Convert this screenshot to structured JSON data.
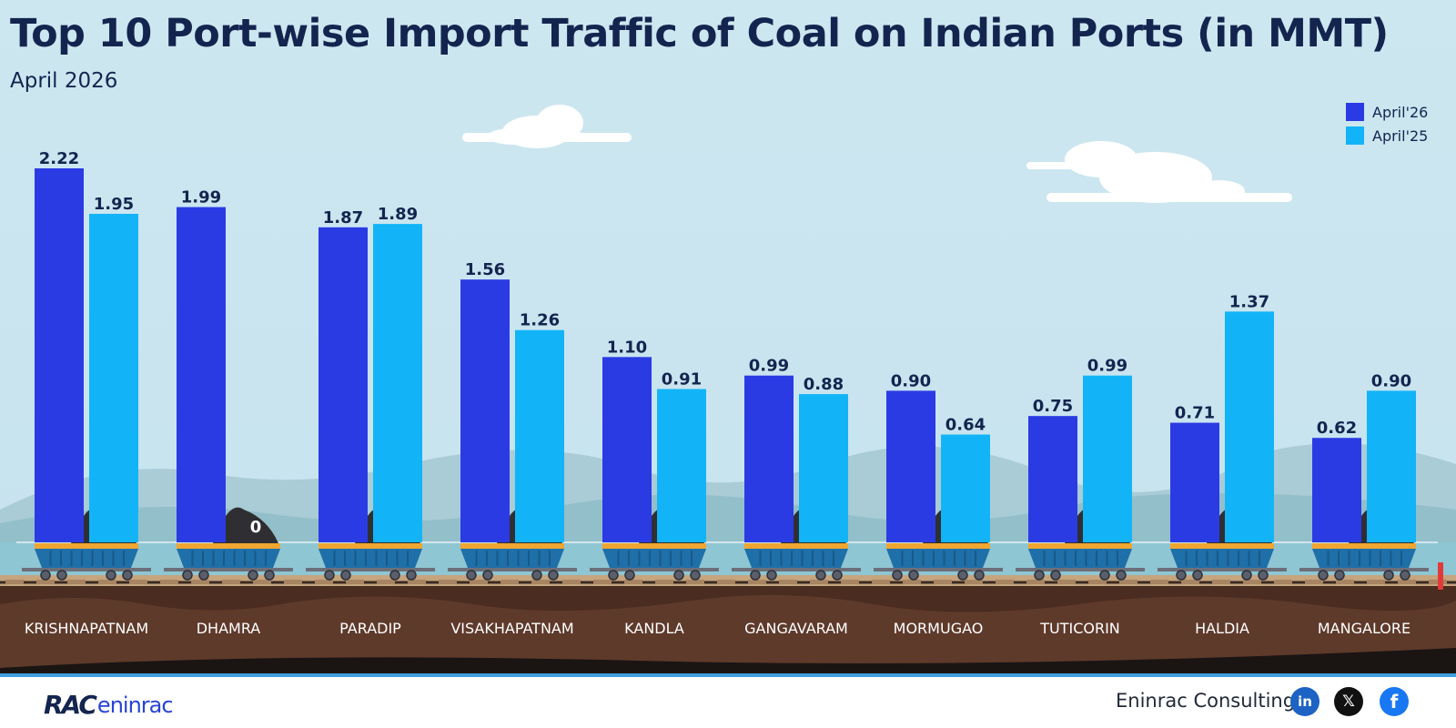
{
  "chart_data": {
    "type": "bar",
    "title": "Top 10 Port-wise Import Traffic of Coal on Indian Ports (in MMT)",
    "subtitle": "April 2026",
    "categories": [
      "KRISHNAPATNAM",
      "DHAMRA",
      "PARADIP",
      "VISAKHAPATNAM",
      "KANDLA",
      "GANGAVARAM",
      "MORMUGAO",
      "TUTICORIN",
      "HALDIA",
      "MANGALORE"
    ],
    "series": [
      {
        "name": "April'26",
        "color": "#2b3be3",
        "values": [
          2.22,
          1.99,
          1.87,
          1.56,
          1.1,
          0.99,
          0.9,
          0.75,
          0.71,
          0.62
        ],
        "labels": [
          "2.22",
          "1.99",
          "1.87",
          "1.56",
          "1.10",
          "0.99",
          "0.90",
          "0.75",
          "0.71",
          "0.62"
        ]
      },
      {
        "name": "April'25",
        "color": "#12b4f7",
        "values": [
          1.95,
          0,
          1.89,
          1.26,
          0.91,
          0.88,
          0.64,
          0.99,
          1.37,
          0.9
        ],
        "labels": [
          "1.95",
          "0",
          "1.89",
          "1.26",
          "0.91",
          "0.88",
          "0.64",
          "0.99",
          "1.37",
          "0.90"
        ]
      }
    ],
    "ylim": [
      0,
      2.22
    ],
    "legend": "top-right",
    "grid": false
  },
  "footer": {
    "brand_mark": "RAC",
    "brand_name": "eninrac",
    "company": "Eninrac Consulting",
    "social": [
      {
        "icon": "linkedin-icon",
        "glyph": "in"
      },
      {
        "icon": "x-icon",
        "glyph": "𝕏"
      },
      {
        "icon": "facebook-icon",
        "glyph": "f"
      }
    ]
  },
  "colors": {
    "sky": "#cfe8f1",
    "title": "#13254f",
    "soil": "#5e3a2b",
    "wagon": "#1f6fa8"
  }
}
